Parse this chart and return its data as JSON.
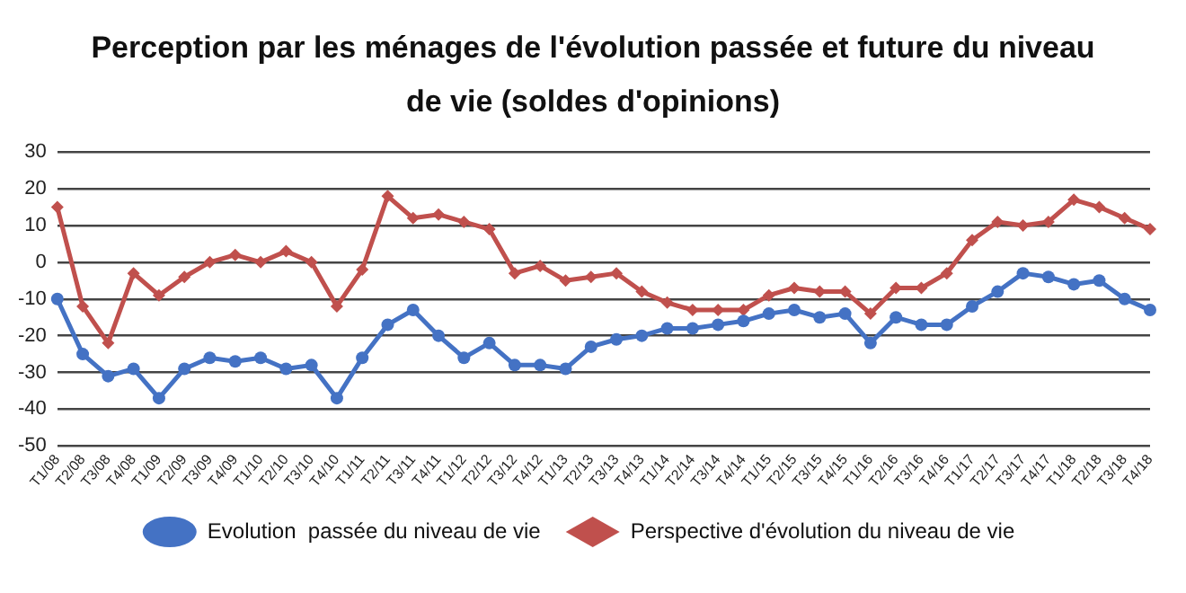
{
  "chart_data": {
    "type": "line",
    "title": "Perception par les ménages de l'évolution passée et future du niveau de vie (soldes d'opinions)",
    "categories": [
      "T1/08",
      "T2/08",
      "T3/08",
      "T4/08",
      "T1/09",
      "T2/09",
      "T3/09",
      "T4/09",
      "T1/10",
      "T2/10",
      "T3/10",
      "T4/10",
      "T1/11",
      "T2/11",
      "T3/11",
      "T4/11",
      "T1/12",
      "T2/12",
      "T3/12",
      "T4/12",
      "T1/13",
      "T2/13",
      "T3/13",
      "T4/13",
      "T1/14",
      "T2/14",
      "T3/14",
      "T4/14",
      "T1/15",
      "T2/15",
      "T3/15",
      "T4/15",
      "T1/16",
      "T2/16",
      "T3/16",
      "T4/16",
      "T1/17",
      "T2/17",
      "T3/17",
      "T4/17",
      "T1/18",
      "T2/18",
      "T3/18",
      "T4/18"
    ],
    "series": [
      {
        "name": "Evolution  passée du niveau de vie",
        "color": "#4472c4",
        "marker": "circle",
        "values": [
          -10,
          -25,
          -31,
          -29,
          -37,
          -29,
          -26,
          -27,
          -26,
          -29,
          -28,
          -37,
          -26,
          -17,
          -13,
          -20,
          -26,
          -22,
          -28,
          -28,
          -29,
          -23,
          -21,
          -20,
          -18,
          -18,
          -17,
          -16,
          -14,
          -13,
          -15,
          -14,
          -22,
          -15,
          -17,
          -17,
          -12,
          -8,
          -3,
          -4,
          -6,
          -5,
          -10,
          -13
        ]
      },
      {
        "name": "Perspective d'évolution du niveau de vie",
        "color": "#c0504d",
        "marker": "diamond",
        "values": [
          15,
          -12,
          -22,
          -3,
          -9,
          -4,
          0,
          2,
          0,
          3,
          0,
          -12,
          -2,
          18,
          12,
          13,
          11,
          9,
          -3,
          -1,
          -5,
          -4,
          -3,
          -8,
          -11,
          -13,
          -13,
          -13,
          -9,
          -7,
          -8,
          -8,
          -14,
          -7,
          -7,
          -3,
          6,
          11,
          10,
          11,
          17,
          15,
          12,
          9
        ]
      }
    ],
    "ylim": [
      -50,
      30
    ],
    "yticks": [
      -50,
      -40,
      -30,
      -20,
      -10,
      0,
      10,
      20,
      30
    ],
    "grid": "y",
    "legend": "bottom"
  }
}
